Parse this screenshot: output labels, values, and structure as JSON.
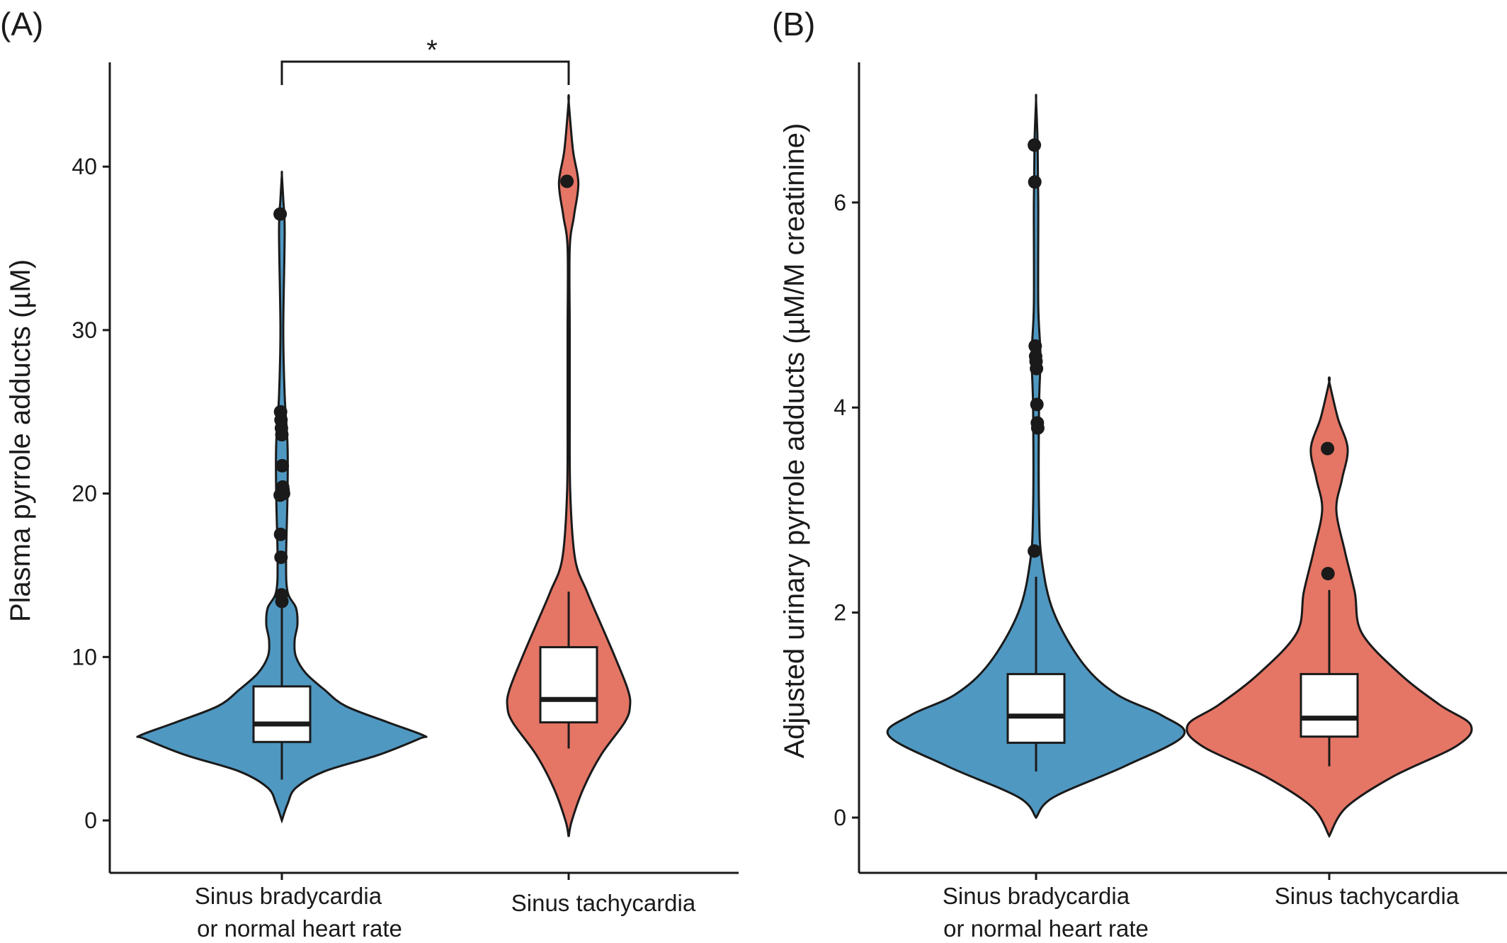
{
  "colors": {
    "group1": "#4f98c2",
    "group2": "#e57565",
    "stroke": "#1a1a1a",
    "box": "#ffffff"
  },
  "chart_data": [
    {
      "type": "violin",
      "panel_label": "(A)",
      "ylabel": "Plasma pyrrole adducts (µM)",
      "xlabel": "",
      "ylim": [
        -3,
        47
      ],
      "yticks": [
        0,
        10,
        20,
        30,
        40
      ],
      "ytick_labels": [
        "0",
        "10",
        "20",
        "30",
        "40"
      ],
      "categories": [
        {
          "line1": "Sinus bradycardia",
          "line2": "or normal heart rate"
        },
        {
          "line1": "Sinus tachycardia",
          "line2": ""
        }
      ],
      "significance": "*",
      "series": [
        {
          "color": "#4f98c2",
          "violin_profile": [
            [
              0.0,
              0.0
            ],
            [
              1.0,
              0.04
            ],
            [
              2.0,
              0.1
            ],
            [
              3.0,
              0.3
            ],
            [
              4.0,
              0.68
            ],
            [
              5.0,
              0.97
            ],
            [
              5.2,
              1.0
            ],
            [
              6.0,
              0.75
            ],
            [
              7.0,
              0.45
            ],
            [
              8.0,
              0.3
            ],
            [
              9.0,
              0.17
            ],
            [
              10.0,
              0.1
            ],
            [
              11.0,
              0.09
            ],
            [
              12.0,
              0.11
            ],
            [
              13.0,
              0.1
            ],
            [
              14.0,
              0.04
            ],
            [
              16.0,
              0.03
            ],
            [
              20.0,
              0.04
            ],
            [
              23.0,
              0.04
            ],
            [
              26.0,
              0.02
            ],
            [
              30.0,
              0.01
            ],
            [
              36.0,
              0.02
            ],
            [
              38.0,
              0.01
            ],
            [
              39.5,
              0.0
            ]
          ],
          "box": {
            "whisker_low": 2.5,
            "q1": 4.8,
            "median": 5.9,
            "q3": 8.2,
            "whisker_high": 13.5
          },
          "outliers": [
            37.1,
            25.0,
            24.5,
            24.0,
            23.6,
            21.7,
            20.4,
            20.2,
            20.0,
            19.9,
            17.5,
            16.1,
            13.8,
            13.4
          ]
        },
        {
          "color": "#e57565",
          "violin_profile": [
            [
              -1.0,
              0.0
            ],
            [
              0.0,
              0.03
            ],
            [
              2.0,
              0.14
            ],
            [
              4.0,
              0.3
            ],
            [
              6.0,
              0.52
            ],
            [
              7.0,
              0.57
            ],
            [
              8.0,
              0.55
            ],
            [
              10.0,
              0.43
            ],
            [
              12.0,
              0.3
            ],
            [
              14.0,
              0.17
            ],
            [
              16.0,
              0.06
            ],
            [
              20.0,
              0.015
            ],
            [
              25.0,
              0.01
            ],
            [
              30.0,
              0.01
            ],
            [
              35.0,
              0.01
            ],
            [
              37.0,
              0.05
            ],
            [
              39.0,
              0.09
            ],
            [
              41.0,
              0.04
            ],
            [
              44.0,
              0.0
            ]
          ],
          "box": {
            "whisker_low": 4.4,
            "q1": 6.0,
            "median": 7.4,
            "q3": 10.6,
            "whisker_high": 14.0
          },
          "outliers": [
            39.1
          ]
        }
      ]
    },
    {
      "type": "violin",
      "panel_label": "(B)",
      "ylabel": "Adjusted urinary pyrrole adducts (µM/M creatinine)",
      "xlabel": "",
      "ylim": [
        -0.45,
        7.3
      ],
      "yticks": [
        0,
        2,
        4,
        6
      ],
      "ytick_labels": [
        "0",
        "2",
        "4",
        "6"
      ],
      "categories": [
        {
          "line1": "Sinus bradycardia",
          "line2": "or normal heart rate"
        },
        {
          "line1": "Sinus tachycardia",
          "line2": ""
        }
      ],
      "significance": "",
      "series": [
        {
          "color": "#4f98c2",
          "violin_profile": [
            [
              0.0,
              0.0
            ],
            [
              0.2,
              0.12
            ],
            [
              0.5,
              0.6
            ],
            [
              0.8,
              1.0
            ],
            [
              1.0,
              0.85
            ],
            [
              1.2,
              0.55
            ],
            [
              1.5,
              0.32
            ],
            [
              2.0,
              0.12
            ],
            [
              2.5,
              0.04
            ],
            [
              3.0,
              0.02
            ],
            [
              4.0,
              0.02
            ],
            [
              4.5,
              0.03
            ],
            [
              5.0,
              0.015
            ],
            [
              6.0,
              0.015
            ],
            [
              6.6,
              0.01
            ],
            [
              7.0,
              0.0
            ]
          ],
          "box": {
            "whisker_low": 0.45,
            "q1": 0.73,
            "median": 0.99,
            "q3": 1.4,
            "whisker_high": 2.35
          },
          "outliers": [
            6.56,
            6.2,
            4.6,
            4.5,
            4.45,
            4.38,
            4.03,
            3.85,
            3.8,
            2.6
          ]
        },
        {
          "color": "#e57565",
          "violin_profile": [
            [
              -0.18,
              0.0
            ],
            [
              0.1,
              0.12
            ],
            [
              0.4,
              0.45
            ],
            [
              0.7,
              0.9
            ],
            [
              0.9,
              1.0
            ],
            [
              1.1,
              0.78
            ],
            [
              1.4,
              0.5
            ],
            [
              1.8,
              0.23
            ],
            [
              2.2,
              0.18
            ],
            [
              2.6,
              0.11
            ],
            [
              3.0,
              0.05
            ],
            [
              3.3,
              0.09
            ],
            [
              3.6,
              0.13
            ],
            [
              3.9,
              0.06
            ],
            [
              4.25,
              0.0
            ]
          ],
          "box": {
            "whisker_low": 0.5,
            "q1": 0.79,
            "median": 0.97,
            "q3": 1.4,
            "whisker_high": 2.22
          },
          "outliers": [
            3.6,
            2.38
          ]
        }
      ]
    }
  ]
}
